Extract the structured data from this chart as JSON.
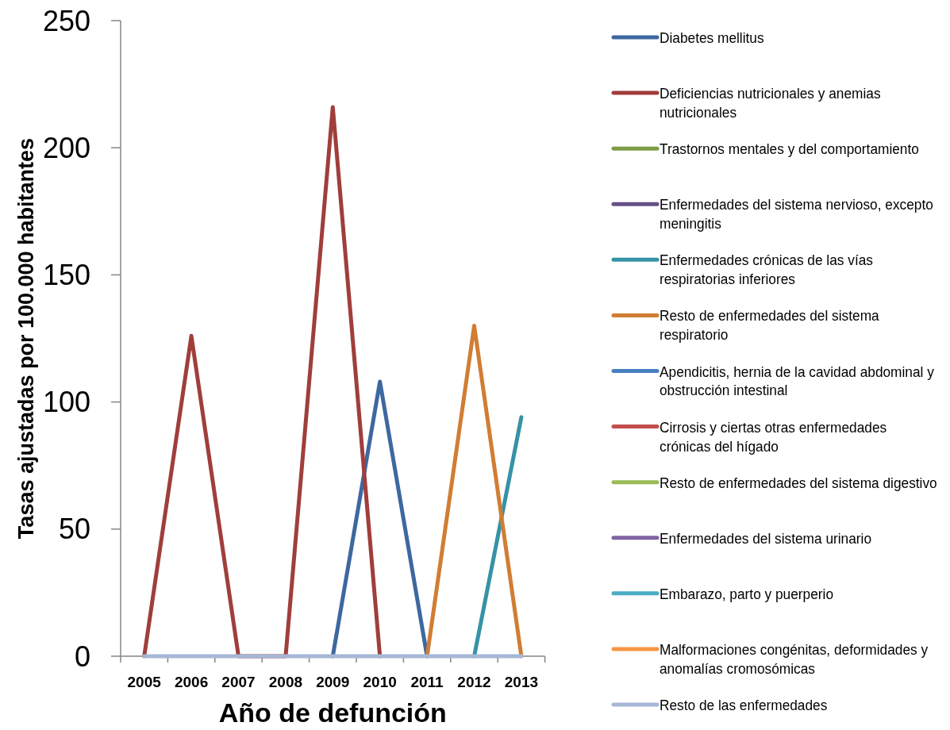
{
  "chart_data": {
    "type": "line",
    "xlabel": "Año de defunción",
    "ylabel": "Tasas ajustadas por 100.000 habitantes",
    "categories": [
      "2005",
      "2006",
      "2007",
      "2008",
      "2009",
      "2010",
      "2011",
      "2012",
      "2013"
    ],
    "ylim": [
      0,
      250
    ],
    "yticks": [
      0,
      50,
      100,
      150,
      200,
      250
    ],
    "legend": "right",
    "series": [
      {
        "name": "Diabetes mellitus",
        "color": "#3d68a0",
        "values": [
          null,
          null,
          null,
          null,
          0,
          108,
          0,
          null,
          null
        ]
      },
      {
        "name": "Deficiencias nutricionales y anemias nutricionales",
        "color": "#a03e3c",
        "values": [
          0,
          126,
          0,
          0,
          216,
          0,
          null,
          null,
          null
        ]
      },
      {
        "name": "Trastornos mentales y del comportamiento",
        "color": "#7e9c45",
        "values": [
          null,
          null,
          null,
          null,
          null,
          null,
          null,
          null,
          null
        ]
      },
      {
        "name": "Enfermedades del sistema nervioso, excepto meningitis",
        "color": "#664f86",
        "values": [
          null,
          null,
          null,
          null,
          null,
          null,
          null,
          null,
          null
        ]
      },
      {
        "name": "Enfermedades crónicas de las vías respiratorias inferiores",
        "color": "#3692a7",
        "values": [
          null,
          null,
          null,
          null,
          null,
          null,
          null,
          0,
          94
        ]
      },
      {
        "name": "Resto de enfermedades del sistema respiratorio",
        "color": "#d17d34",
        "values": [
          null,
          null,
          null,
          null,
          null,
          null,
          0,
          130,
          0
        ]
      },
      {
        "name": "Apendicitis, hernia de la cavidad abdominal y obstrucción intestinal",
        "color": "#4a7fc0",
        "values": [
          null,
          null,
          null,
          null,
          null,
          null,
          null,
          null,
          null
        ]
      },
      {
        "name": "Cirrosis y ciertas otras enfermedades crónicas del hígado",
        "color": "#c34d4a",
        "values": [
          null,
          null,
          null,
          null,
          null,
          null,
          null,
          null,
          null
        ]
      },
      {
        "name": "Resto de enfermedades del sistema digestivo",
        "color": "#9bbb59",
        "values": [
          null,
          null,
          null,
          null,
          null,
          null,
          null,
          null,
          null
        ]
      },
      {
        "name": "Enfermedades del sistema urinario",
        "color": "#8064a2",
        "values": [
          null,
          null,
          null,
          null,
          null,
          null,
          null,
          null,
          null
        ]
      },
      {
        "name": "Embarazo, parto y puerperio",
        "color": "#4bacc6",
        "values": [
          null,
          null,
          null,
          null,
          null,
          null,
          null,
          null,
          null
        ]
      },
      {
        "name": "Malformaciones congénitas, deformidades y anomalías cromosómicas",
        "color": "#f79646",
        "values": [
          null,
          null,
          null,
          null,
          null,
          null,
          null,
          null,
          null
        ]
      },
      {
        "name": "Resto de las enfermedades",
        "color": "#a6b7d6",
        "values": [
          0,
          0,
          0,
          0,
          0,
          0,
          0,
          0,
          0
        ]
      }
    ]
  }
}
